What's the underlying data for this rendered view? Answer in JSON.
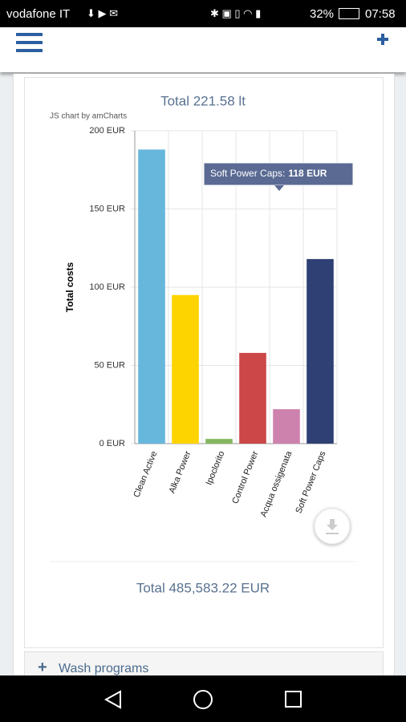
{
  "status_bar": {
    "carrier": "vodafone IT",
    "battery": "32%",
    "time": "07:58"
  },
  "summary": {
    "top_total": "Total 221.58 lt",
    "bottom_total": "Total 485,583.22 EUR"
  },
  "chart_data": {
    "type": "bar",
    "credit": "JS chart by amCharts",
    "y_label": "Total costs",
    "categories": [
      "Clean Active",
      "Alka Power",
      "Ipoclorito",
      "Control Power",
      "Acqua ossigenata",
      "Soft Power Caps"
    ],
    "values": [
      188,
      95,
      3,
      58,
      22,
      118
    ],
    "colors": [
      "#67b7dc",
      "#fdd400",
      "#84b761",
      "#cc4748",
      "#cd82ad",
      "#2f4074"
    ],
    "ylim": [
      0,
      200
    ],
    "yticks": [
      {
        "value": 0,
        "label": "0 EUR"
      },
      {
        "value": 50,
        "label": "50 EUR"
      },
      {
        "value": 100,
        "label": "100 EUR"
      },
      {
        "value": 150,
        "label": "150 EUR"
      },
      {
        "value": 200,
        "label": "200 EUR"
      }
    ],
    "grid": true,
    "tooltip": {
      "label": "Soft Power Caps:",
      "value": "118 EUR"
    }
  },
  "sections": {
    "wash_programs": "Wash programs"
  }
}
